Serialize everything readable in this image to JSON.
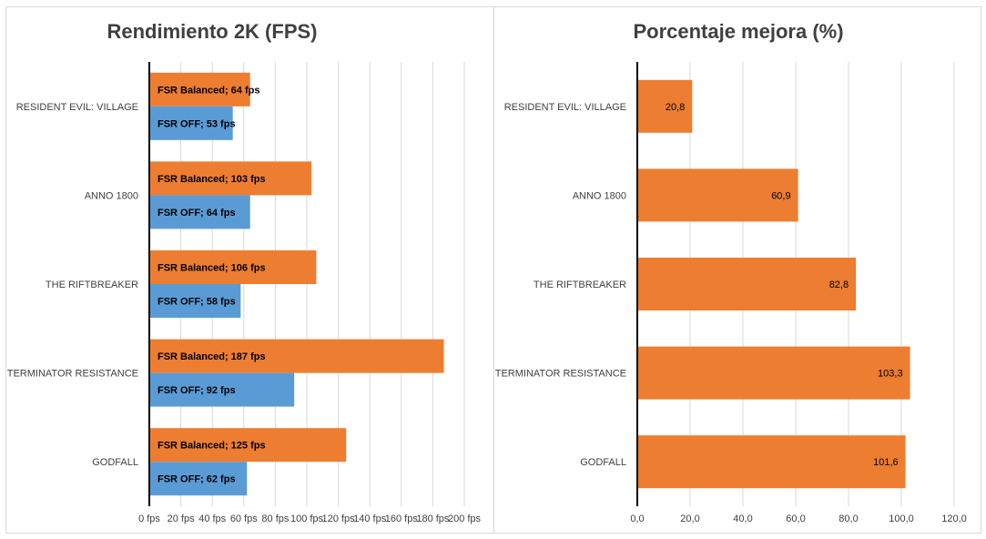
{
  "chart_data": [
    {
      "type": "bar",
      "orientation": "horizontal",
      "title": "Rendimiento 2K (FPS)",
      "categories": [
        "RESIDENT EVIL: VILLAGE",
        "ANNO 1800",
        "THE RIFTBREAKER",
        "TERMINATOR RESISTANCE",
        "GODFALL"
      ],
      "series": [
        {
          "name": "FSR Balanced",
          "color": "#ed7d31",
          "values": [
            64,
            103,
            106,
            187,
            125
          ],
          "labels": [
            "FSR Balanced; 64 fps",
            "FSR Balanced; 103 fps",
            "FSR Balanced; 106 fps",
            "FSR Balanced; 187 fps",
            "FSR Balanced; 125 fps"
          ]
        },
        {
          "name": "FSR OFF",
          "color": "#5b9bd5",
          "values": [
            53,
            64,
            58,
            92,
            62
          ],
          "labels": [
            "FSR OFF; 53 fps",
            "FSR OFF; 64 fps",
            "FSR OFF; 58 fps",
            "FSR OFF; 92 fps",
            "FSR OFF; 62 fps"
          ]
        }
      ],
      "xlim": [
        0,
        200
      ],
      "xticks": [
        "0 fps",
        "20 fps",
        "40 fps",
        "60 fps",
        "80 fps",
        "100 fps",
        "120 fps",
        "140 fps",
        "160 fps",
        "180 fps",
        "200 fps"
      ],
      "grid": true,
      "legend": "none"
    },
    {
      "type": "bar",
      "orientation": "horizontal",
      "title": "Porcentaje mejora (%)",
      "categories": [
        "RESIDENT EVIL: VILLAGE",
        "ANNO 1800",
        "THE RIFTBREAKER",
        "TERMINATOR RESISTANCE",
        "GODFALL"
      ],
      "series": [
        {
          "color": "#ed7d31",
          "values": [
            20.8,
            60.9,
            82.8,
            103.3,
            101.6
          ],
          "labels": [
            "20,8",
            "60,9",
            "82,8",
            "103,3",
            "101,6"
          ]
        }
      ],
      "xlim": [
        0,
        120
      ],
      "xticks": [
        "0,0",
        "20,0",
        "40,0",
        "60,0",
        "80,0",
        "100,0",
        "120,0"
      ],
      "grid": true,
      "legend": "none"
    }
  ]
}
